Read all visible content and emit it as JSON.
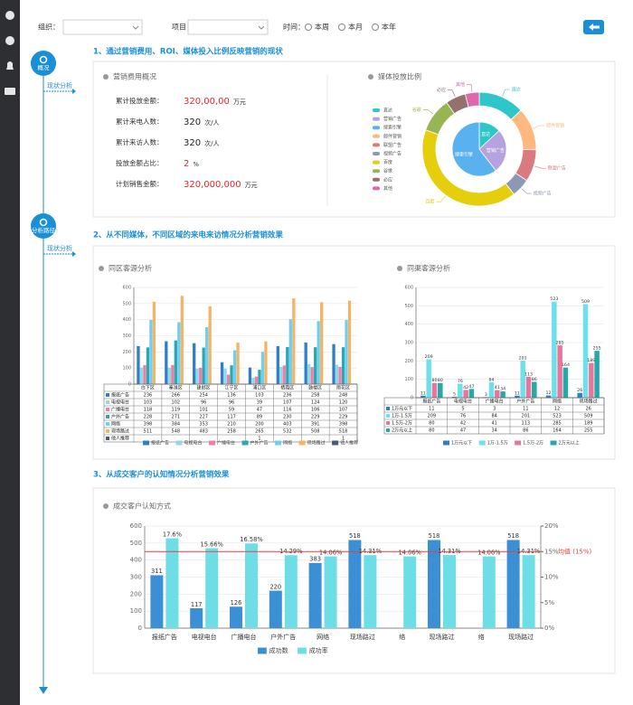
{
  "filters": {
    "org_label": "组织：",
    "project_label": "项目：",
    "time_label": "时间：",
    "time_options": [
      "本周",
      "本月",
      "本年"
    ]
  },
  "timeline": [
    {
      "label": "概况",
      "link": "现状分析"
    },
    {
      "label": "分析路径",
      "link": "现状分析"
    }
  ],
  "sections": [
    {
      "title": "1、通过营销费用、ROI、媒体投入比例反映营销的现状"
    },
    {
      "title": "2、从不同媒体，不同区域的来电来访情况分析营销效果"
    },
    {
      "title": "3、从成交客户的认知情况分析营销效果"
    }
  ],
  "summary": {
    "title": "营销费用概况",
    "rows": [
      {
        "label": "累计投放金额：",
        "value": "320,00,00",
        "unit": "万元",
        "value_color": "#e0262b"
      },
      {
        "label": "累计来电人数：",
        "value": 320,
        "unit": "次/人",
        "value_color": "#222222"
      },
      {
        "label": "累计来访人数：",
        "value": 320,
        "unit": "次/人",
        "value_color": "#222222"
      },
      {
        "label": "投放金额占比：",
        "value": 2,
        "unit": "%",
        "value_color": "#e0262b"
      },
      {
        "label": "计划销售金额：",
        "value": "320,000,000",
        "unit": "万元",
        "value_color": "#e0262b"
      }
    ]
  },
  "chart_data": [
    {
      "type": "pie",
      "title": "媒体投放比例",
      "legend": [
        {
          "name": "直达",
          "color": "#2ec7c9"
        },
        {
          "name": "营销广告",
          "color": "#b6a2de"
        },
        {
          "name": "搜索引擎",
          "color": "#5ab1ef"
        },
        {
          "name": "邮件营销",
          "color": "#ffb980"
        },
        {
          "name": "联盟广告",
          "color": "#d87a80"
        },
        {
          "name": "视频广告",
          "color": "#8d98b3"
        },
        {
          "name": "百度",
          "color": "#e5cf0d"
        },
        {
          "name": "谷歌",
          "color": "#97b552"
        },
        {
          "name": "必应",
          "color": "#95706d"
        },
        {
          "name": "其他",
          "color": "#dc69aa"
        }
      ],
      "rings": [
        {
          "categories": [
            "直达",
            "营销广告",
            "搜索引擎"
          ],
          "values": [
            335,
            679,
            1548
          ]
        },
        {
          "categories": [
            "直达",
            "邮件营销",
            "联盟广告",
            "视频广告",
            "百度",
            "谷歌",
            "必应",
            "其他"
          ],
          "values": [
            335,
            310,
            234,
            135,
            1048,
            251,
            147,
            102
          ]
        }
      ]
    },
    {
      "type": "bar",
      "title": "同区客源分析",
      "categories": [
        "白下区",
        "秦淮区",
        "建邺区",
        "江宁区",
        "浦口区",
        "栖霞区",
        "鼓楼区",
        "雨花区"
      ],
      "series": [
        {
          "name": "报纸广告",
          "color": "#2e7fc7",
          "values": [
            236,
            266,
            254,
            136,
            103,
            236,
            258,
            248
          ]
        },
        {
          "name": "电视电台",
          "color": "#8fd9e8",
          "values": [
            103,
            102,
            96,
            96,
            39,
            107,
            124,
            120
          ]
        },
        {
          "name": "广播电台",
          "color": "#ef7fa1",
          "values": [
            118,
            119,
            101,
            59,
            47,
            116,
            106,
            107
          ]
        },
        {
          "name": "户外广告",
          "color": "#2aa6b4",
          "values": [
            228,
            271,
            227,
            117,
            89,
            230,
            229,
            229
          ]
        },
        {
          "name": "网络",
          "color": "#6fcff2",
          "values": [
            398,
            384,
            353,
            210,
            200,
            403,
            391,
            398
          ]
        },
        {
          "name": "现场路过",
          "color": "#f3b466",
          "values": [
            511,
            548,
            483,
            258,
            265,
            532,
            508,
            518
          ]
        },
        {
          "name": "他人推荐",
          "color": "#4a5a78",
          "values": [
            null,
            null,
            null,
            null,
            1,
            null,
            null,
            1
          ]
        }
      ],
      "ylim": [
        0,
        600
      ],
      "yticks": [
        0,
        100,
        200,
        300,
        400,
        500,
        600
      ],
      "grid": true,
      "table": true
    },
    {
      "type": "bar",
      "title": "同渠客源分析",
      "categories": [
        "报纸广告",
        "电视电台",
        "广播电台",
        "户外广告",
        "网络",
        "现场路过"
      ],
      "series": [
        {
          "name": "1万元以下",
          "color": "#2e7fc7",
          "values": [
            11,
            5,
            3,
            11,
            12,
            26
          ]
        },
        {
          "name": "1万-1.5万",
          "color": "#6ee0ec",
          "values": [
            209,
            76,
            84,
            201,
            523,
            509
          ]
        },
        {
          "name": "1.5万-2万",
          "color": "#e8769b",
          "values": [
            80,
            42,
            41,
            113,
            285,
            189
          ]
        },
        {
          "name": "2万元以上",
          "color": "#27a8a8",
          "values": [
            80,
            47,
            34,
            86,
            164,
            255
          ]
        }
      ],
      "ylim": [
        0,
        600
      ],
      "yticks": [
        0,
        100,
        200,
        300,
        400,
        500,
        600
      ],
      "grid": true,
      "table": true,
      "labels": true
    },
    {
      "type": "bar",
      "title": "成交客户认知方式",
      "categories": [
        "报纸广告",
        "电视电台",
        "广播电台",
        "户外广告",
        "网络",
        "现场路过",
        "络",
        "现场路过",
        "络",
        "现场路过"
      ],
      "series": [
        {
          "name": "成功数",
          "color": "#3a8fd5",
          "values": [
            311,
            117,
            126,
            220,
            383,
            518,
            null,
            518,
            null,
            518
          ]
        },
        {
          "name": "成功率",
          "color": "#6ddde6",
          "axis": "y2",
          "values": [
            17.6,
            15.66,
            16.58,
            14.29,
            14.06,
            14.31,
            14.06,
            14.31,
            14.06,
            14.31
          ],
          "value_labels": [
            "17.6%",
            "15.66%",
            "16.58%",
            "14.29%",
            "14.06%",
            "14.31%",
            "14.06%",
            "14.31%",
            "14.06%",
            "14.31%"
          ]
        }
      ],
      "ylim": [
        0,
        600
      ],
      "yticks": [
        0,
        100,
        200,
        300,
        400,
        500,
        600
      ],
      "y2lim": [
        0,
        20
      ],
      "y2ticks": [
        {
          "value": 0,
          "label": "0%"
        },
        {
          "value": 5,
          "label": "5%"
        },
        {
          "value": 10,
          "label": "10%"
        },
        {
          "value": 15,
          "label": "15%"
        },
        {
          "value": 20,
          "label": "20%"
        }
      ],
      "grid": true,
      "labels": true,
      "mark_line": {
        "value": 15,
        "axis": "y2",
        "label": "均值 (15%)",
        "color": "#e8403a"
      }
    }
  ]
}
